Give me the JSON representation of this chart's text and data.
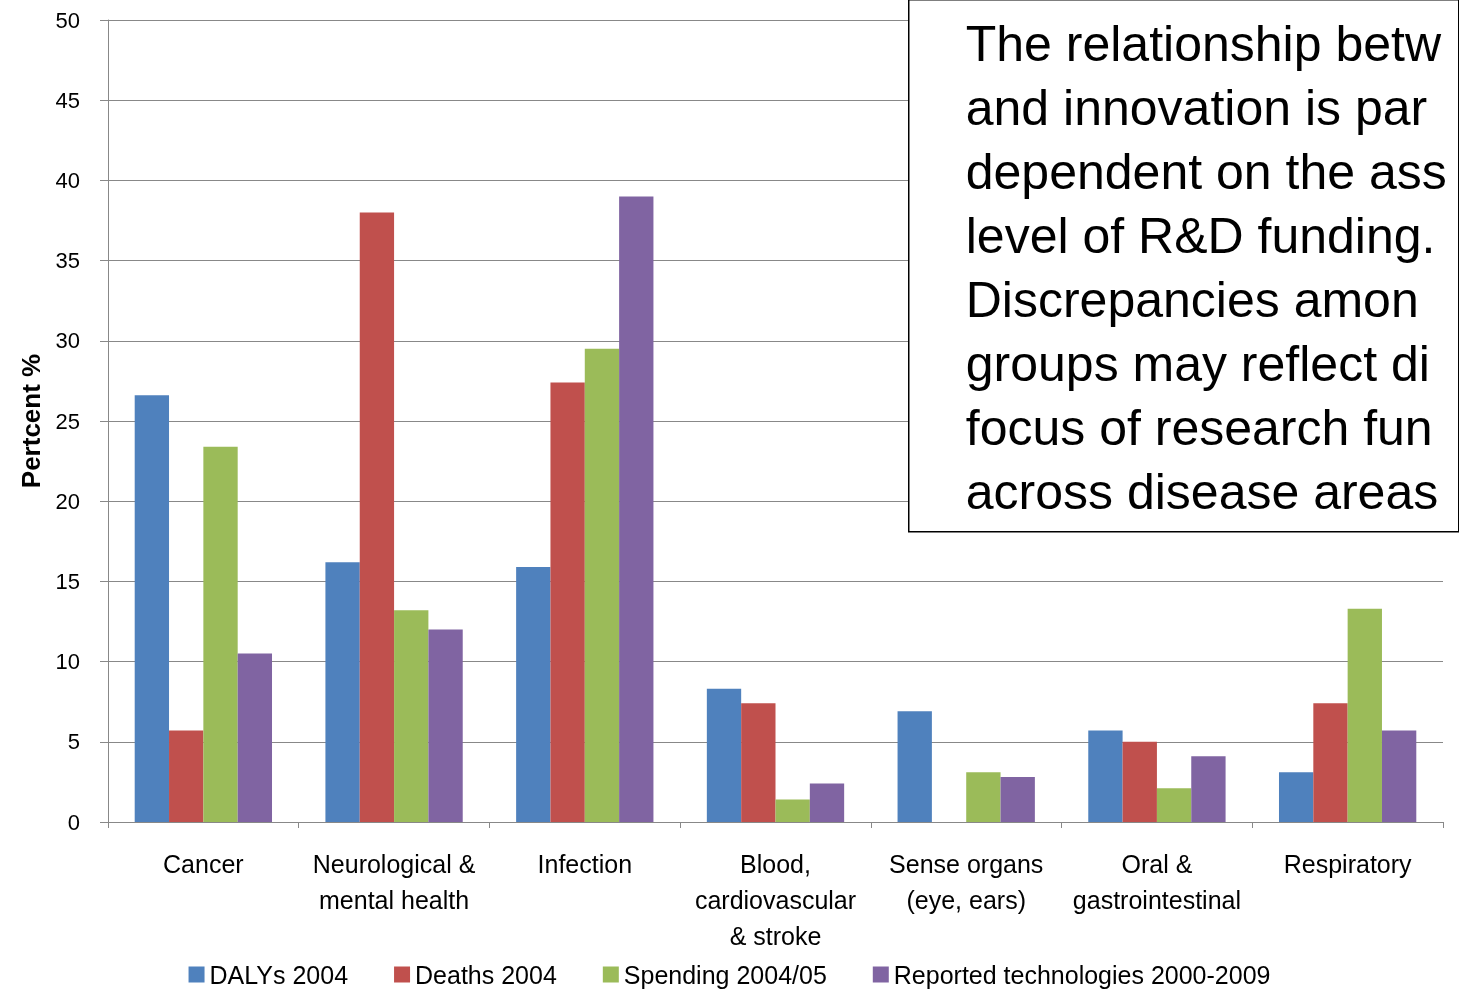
{
  "chart_data": {
    "type": "bar",
    "ylabel": "Pertcent %",
    "categories": [
      "Cancer",
      "Neurological &\nmental health",
      "Infection",
      "Blood,\ncardiovascular\n& stroke",
      "Sense organs\n(eye, ears)",
      "Oral &\ngastrointestinal",
      "Respiratory"
    ],
    "series": [
      {
        "name": "DALYs 2004",
        "color": "#4f81bd",
        "values": [
          26.6,
          16.2,
          15.9,
          8.3,
          6.9,
          5.7,
          3.1
        ]
      },
      {
        "name": "Deaths 2004",
        "color": "#c0504d",
        "values": [
          5.7,
          38.0,
          27.4,
          7.4,
          0,
          5.0,
          7.4
        ]
      },
      {
        "name": "Spending 2004/05",
        "color": "#9bbb59",
        "values": [
          23.4,
          13.2,
          29.5,
          1.4,
          3.1,
          2.1,
          13.3
        ]
      },
      {
        "name": "Reported technologies 2000-2009",
        "color": "#8064a2",
        "values": [
          10.5,
          12.0,
          39.0,
          2.4,
          2.8,
          4.1,
          5.7
        ]
      }
    ],
    "ylim": [
      0,
      50
    ],
    "yticks": [
      0,
      5,
      10,
      15,
      20,
      25,
      30,
      35,
      40,
      45,
      50
    ],
    "grid": "y",
    "legend": "bottom",
    "annotations": [
      "The relationship betw\nand innovation is par\ndependent on the ass\nlevel of R&D funding.\nDiscrepancies amon\ngroups may reflect di\nfocus of research fun\nacross disease areas"
    ]
  }
}
